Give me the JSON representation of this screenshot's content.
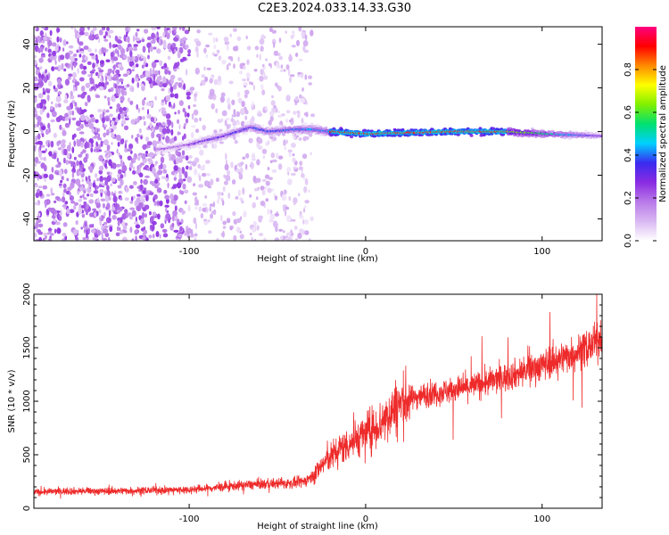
{
  "page": {
    "title": "C2E3.2024.033.14.33.G30"
  },
  "colors": {
    "snr_line": "#ee2a2a",
    "axis": "#000000",
    "colormap": [
      "#ffffff",
      "#d9b8f2",
      "#b87ae8",
      "#8a2be2",
      "#3a2bf0",
      "#00d0ff",
      "#00e070",
      "#80f000",
      "#ffff00",
      "#ff8a00",
      "#ff0000",
      "#ff0080"
    ]
  },
  "chart_data": [
    {
      "type": "heatmap",
      "title": "C2E3.2024.033.14.33.G30",
      "xlabel": "Height of straight line (km)",
      "ylabel": "Frequency (Hz)",
      "xlim": [
        -188,
        134
      ],
      "ylim": [
        -50,
        48
      ],
      "x_ticks": [
        -100,
        0,
        100
      ],
      "y_ticks": [
        -40,
        -20,
        0,
        20,
        40
      ],
      "colorbar": {
        "label": "Normalized spectral amplitude",
        "range": [
          0.0,
          1.0
        ],
        "ticks": [
          0.0,
          0.2,
          0.4,
          0.6,
          0.8
        ]
      },
      "features": {
        "noise_region_x": [
          -188,
          -30
        ],
        "dense_noise_x": [
          -188,
          -100
        ],
        "signal_band_center": [
          [
            -115,
            -8
          ],
          [
            -100,
            -6
          ],
          [
            -80,
            -2
          ],
          [
            -65,
            2
          ],
          [
            -55,
            0
          ],
          [
            -40,
            1
          ],
          [
            -30,
            1
          ],
          [
            -20,
            0
          ],
          [
            0,
            -1
          ],
          [
            50,
            0
          ],
          [
            80,
            0
          ],
          [
            100,
            -1
          ],
          [
            134,
            -2
          ]
        ],
        "peak_amplitude_x": [
          -20,
          80
        ]
      }
    },
    {
      "type": "line",
      "xlabel": "Height of straight line (km)",
      "ylabel": "SNR (10 * v/v)",
      "xlim": [
        -188,
        134
      ],
      "ylim": [
        0,
        2000
      ],
      "x_ticks": [
        -100,
        0,
        100
      ],
      "y_ticks": [
        0,
        500,
        1000,
        1500,
        2000
      ],
      "series": [
        {
          "x": [
            -188,
            -170,
            -150,
            -130,
            -110,
            -100,
            -90,
            -80,
            -70,
            -60,
            -50,
            -40,
            -35,
            -30,
            -25,
            -20,
            -15,
            -10,
            -5,
            0,
            5,
            10,
            15,
            20,
            25,
            30,
            40,
            50,
            60,
            70,
            80,
            90,
            100,
            110,
            120,
            130,
            134
          ],
          "values": [
            150,
            160,
            160,
            165,
            170,
            175,
            185,
            200,
            215,
            225,
            230,
            235,
            250,
            300,
            400,
            480,
            550,
            600,
            650,
            700,
            750,
            820,
            920,
            980,
            1020,
            1050,
            1080,
            1110,
            1140,
            1180,
            1230,
            1280,
            1340,
            1400,
            1460,
            1540,
            1600
          ]
        }
      ]
    }
  ]
}
